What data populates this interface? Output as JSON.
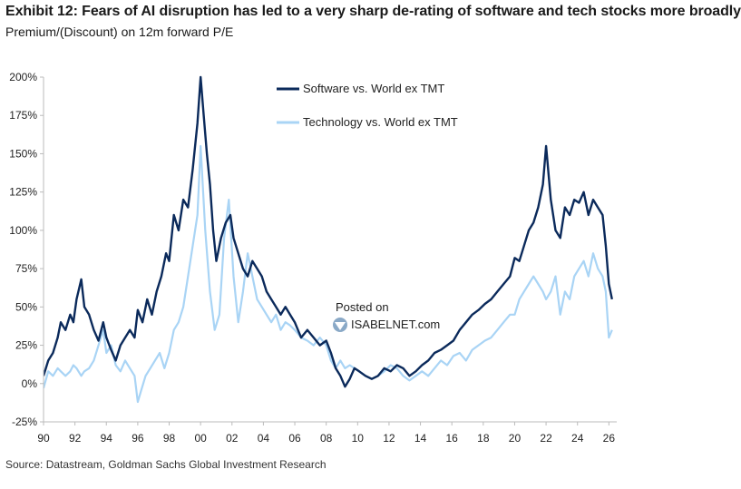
{
  "header": {
    "title": "Exhibit 12: Fears of AI disruption has led to a very sharp de-rating of software and tech stocks more broadly",
    "subtitle": "Premium/(Discount) on 12m forward P/E"
  },
  "footer": {
    "source": "Source: Datastream, Goldman Sachs Global Investment Research"
  },
  "watermark": {
    "line1": "Posted on",
    "line2": "ISABELNET.com"
  },
  "colors": {
    "software": "#0b2a5b",
    "technology": "#a9d4f5",
    "axis": "#bbbbbb",
    "text": "#222222"
  },
  "chart_data": {
    "type": "line",
    "title": "Exhibit 12: Fears of AI disruption has led to a very sharp de-rating of software and tech stocks more broadly",
    "ylabel": "Premium/(Discount) on 12m forward P/E",
    "xlabel": "",
    "xlim": [
      1990,
      2026.5
    ],
    "ylim": [
      -25,
      200
    ],
    "y_ticks": [
      -25,
      0,
      25,
      50,
      75,
      100,
      125,
      150,
      175,
      200
    ],
    "y_tick_labels": [
      "-25%",
      "0%",
      "25%",
      "50%",
      "75%",
      "100%",
      "125%",
      "150%",
      "175%",
      "200%"
    ],
    "x_ticks": [
      1990,
      1992,
      1994,
      1996,
      1998,
      2000,
      2002,
      2004,
      2006,
      2008,
      2010,
      2012,
      2014,
      2016,
      2018,
      2020,
      2022,
      2024,
      2026
    ],
    "x_tick_labels": [
      "90",
      "92",
      "94",
      "96",
      "98",
      "00",
      "02",
      "04",
      "06",
      "08",
      "10",
      "12",
      "14",
      "16",
      "18",
      "20",
      "22",
      "24",
      "26"
    ],
    "legend_position": "top-center",
    "series": [
      {
        "name": "Software vs. World ex TMT",
        "x": [
          1990.0,
          1990.3,
          1990.6,
          1990.9,
          1991.1,
          1991.4,
          1991.7,
          1991.9,
          1992.1,
          1992.4,
          1992.6,
          1992.9,
          1993.2,
          1993.5,
          1993.8,
          1994.0,
          1994.3,
          1994.6,
          1994.9,
          1995.2,
          1995.5,
          1995.8,
          1996.0,
          1996.3,
          1996.6,
          1996.9,
          1997.2,
          1997.5,
          1997.8,
          1998.0,
          1998.3,
          1998.6,
          1998.9,
          1999.2,
          1999.5,
          1999.8,
          2000.0,
          2000.2,
          2000.4,
          2000.6,
          2000.8,
          2001.0,
          2001.3,
          2001.6,
          2001.9,
          2002.1,
          2002.4,
          2002.7,
          2003.0,
          2003.3,
          2003.6,
          2003.9,
          2004.2,
          2004.5,
          2004.8,
          2005.1,
          2005.4,
          2005.7,
          2006.0,
          2006.4,
          2006.8,
          2007.2,
          2007.6,
          2008.0,
          2008.3,
          2008.6,
          2008.9,
          2009.2,
          2009.5,
          2009.8,
          2010.1,
          2010.5,
          2010.9,
          2011.3,
          2011.7,
          2012.1,
          2012.5,
          2012.9,
          2013.3,
          2013.7,
          2014.1,
          2014.5,
          2014.9,
          2015.3,
          2015.7,
          2016.1,
          2016.5,
          2016.9,
          2017.3,
          2017.7,
          2018.1,
          2018.5,
          2018.9,
          2019.3,
          2019.7,
          2020.0,
          2020.3,
          2020.6,
          2020.9,
          2021.2,
          2021.5,
          2021.8,
          2022.0,
          2022.3,
          2022.6,
          2022.9,
          2023.2,
          2023.5,
          2023.8,
          2024.1,
          2024.4,
          2024.7,
          2025.0,
          2025.3,
          2025.6,
          2025.8,
          2026.0,
          2026.2
        ],
        "values": [
          5,
          15,
          20,
          30,
          40,
          35,
          45,
          40,
          55,
          68,
          50,
          45,
          35,
          28,
          40,
          30,
          22,
          15,
          25,
          30,
          35,
          30,
          48,
          40,
          55,
          45,
          60,
          70,
          85,
          80,
          110,
          100,
          120,
          115,
          140,
          170,
          200,
          175,
          150,
          130,
          100,
          80,
          95,
          105,
          110,
          95,
          85,
          75,
          70,
          80,
          75,
          70,
          60,
          55,
          50,
          45,
          50,
          45,
          40,
          30,
          35,
          30,
          25,
          28,
          20,
          10,
          5,
          -2,
          3,
          10,
          8,
          5,
          3,
          5,
          10,
          8,
          12,
          10,
          5,
          8,
          12,
          15,
          20,
          22,
          25,
          28,
          35,
          40,
          45,
          48,
          52,
          55,
          60,
          65,
          70,
          82,
          80,
          90,
          100,
          105,
          115,
          130,
          155,
          120,
          100,
          95,
          115,
          110,
          120,
          118,
          125,
          110,
          120,
          115,
          110,
          90,
          65,
          55
        ]
      },
      {
        "name": "Technology vs. World ex TMT",
        "x": [
          1990.0,
          1990.3,
          1990.6,
          1990.9,
          1991.1,
          1991.4,
          1991.7,
          1991.9,
          1992.1,
          1992.4,
          1992.6,
          1992.9,
          1993.2,
          1993.5,
          1993.8,
          1994.0,
          1994.3,
          1994.6,
          1994.9,
          1995.2,
          1995.5,
          1995.8,
          1996.0,
          1996.2,
          1996.5,
          1996.8,
          1997.1,
          1997.4,
          1997.7,
          1998.0,
          1998.3,
          1998.6,
          1998.9,
          1999.2,
          1999.5,
          1999.8,
          2000.0,
          2000.3,
          2000.6,
          2000.9,
          2001.2,
          2001.5,
          2001.8,
          2002.1,
          2002.4,
          2002.7,
          2003.0,
          2003.3,
          2003.6,
          2003.9,
          2004.2,
          2004.5,
          2004.8,
          2005.1,
          2005.4,
          2005.7,
          2006.0,
          2006.4,
          2006.8,
          2007.2,
          2007.6,
          2008.0,
          2008.3,
          2008.6,
          2008.9,
          2009.2,
          2009.5,
          2009.8,
          2010.1,
          2010.5,
          2010.9,
          2011.3,
          2011.7,
          2012.1,
          2012.5,
          2012.9,
          2013.3,
          2013.7,
          2014.1,
          2014.5,
          2014.9,
          2015.3,
          2015.7,
          2016.1,
          2016.5,
          2016.9,
          2017.3,
          2017.7,
          2018.1,
          2018.5,
          2018.9,
          2019.3,
          2019.7,
          2020.0,
          2020.3,
          2020.6,
          2020.9,
          2021.2,
          2021.5,
          2021.8,
          2022.0,
          2022.3,
          2022.6,
          2022.9,
          2023.2,
          2023.5,
          2023.8,
          2024.1,
          2024.4,
          2024.7,
          2025.0,
          2025.3,
          2025.6,
          2025.8,
          2026.0,
          2026.2
        ],
        "values": [
          -3,
          8,
          5,
          10,
          8,
          5,
          8,
          12,
          10,
          5,
          8,
          10,
          15,
          25,
          35,
          20,
          25,
          12,
          8,
          15,
          10,
          5,
          -12,
          -5,
          5,
          10,
          15,
          20,
          10,
          20,
          35,
          40,
          50,
          70,
          90,
          110,
          155,
          100,
          60,
          35,
          45,
          95,
          120,
          70,
          40,
          60,
          85,
          70,
          55,
          50,
          45,
          40,
          45,
          35,
          40,
          38,
          35,
          30,
          28,
          25,
          30,
          25,
          15,
          10,
          15,
          10,
          12,
          10,
          8,
          5,
          3,
          5,
          8,
          12,
          10,
          5,
          2,
          5,
          8,
          5,
          10,
          15,
          12,
          18,
          20,
          15,
          22,
          25,
          28,
          30,
          35,
          40,
          45,
          45,
          55,
          60,
          65,
          70,
          65,
          60,
          55,
          60,
          70,
          45,
          60,
          55,
          70,
          75,
          80,
          70,
          85,
          75,
          70,
          60,
          30,
          35
        ]
      }
    ]
  }
}
